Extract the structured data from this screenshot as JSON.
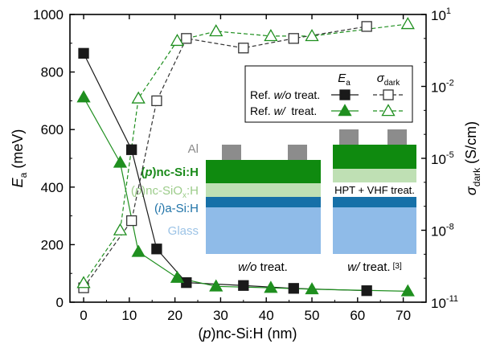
{
  "chart_data": {
    "type": "line",
    "x_axis": {
      "label_main": "(",
      "label_italic": "p",
      "label_rest": ")nc-Si:H (nm)",
      "range": [
        -3,
        75
      ],
      "ticks": [
        "0",
        "10",
        "20",
        "30",
        "40",
        "50",
        "60",
        "70"
      ],
      "tick_values": [
        0,
        10,
        20,
        30,
        40,
        50,
        60,
        70
      ]
    },
    "y_left": {
      "label_sym": "E",
      "label_sub": "a",
      "label_unit": " (meV)",
      "range": [
        0,
        1000
      ],
      "ticks": [
        "0",
        "200",
        "400",
        "600",
        "800",
        "1000"
      ],
      "tick_values": [
        0,
        200,
        400,
        600,
        800,
        1000
      ]
    },
    "y_right": {
      "label_sym": "σ",
      "label_sub": "dark",
      "label_unit": " (S/cm)",
      "scale": "log",
      "range_exp": [
        -11,
        1
      ],
      "ticks": [
        {
          "base": "10",
          "exp": "1",
          "e": 1
        },
        {
          "base": "10",
          "exp": "-2",
          "e": -2
        },
        {
          "base": "10",
          "exp": "-5",
          "e": -5
        },
        {
          "base": "10",
          "exp": "-8",
          "e": -8
        },
        {
          "base": "10",
          "exp": "-11",
          "e": -11
        }
      ]
    },
    "series": [
      {
        "axis": "left",
        "color": "#1a1a1a",
        "marker": "square-filled",
        "line": "solid",
        "x": [
          0,
          10.5,
          16,
          22.5,
          35,
          46,
          62
        ],
        "y": [
          865,
          530,
          185,
          68,
          58,
          48,
          40
        ]
      },
      {
        "axis": "left",
        "color": "#1f8f1f",
        "marker": "triangle-filled",
        "line": "solid",
        "x": [
          0,
          8,
          12,
          20.5,
          29,
          41,
          50,
          71
        ],
        "y": [
          712,
          485,
          175,
          85,
          55,
          50,
          45,
          38
        ]
      },
      {
        "axis": "right",
        "color": "#333333",
        "marker": "square-open",
        "line": "dashed",
        "x": [
          0,
          10.5,
          16,
          22.5,
          35,
          46,
          62
        ],
        "y_exp": [
          -10.4,
          -7.6,
          -2.6,
          0.0,
          -0.4,
          0.0,
          0.5
        ]
      },
      {
        "axis": "right",
        "color": "#1f8f1f",
        "marker": "triangle-open",
        "line": "dashed",
        "x": [
          0,
          8,
          12,
          20.5,
          29,
          41,
          50,
          71
        ],
        "y_exp": [
          -10.2,
          -8.0,
          -2.5,
          -0.1,
          0.3,
          0.1,
          0.1,
          0.6
        ]
      }
    ],
    "legend": {
      "header_left_sym": "E",
      "header_left_sub": "a",
      "header_right_sym": "σ",
      "header_right_sub": "dark",
      "rows": [
        {
          "prefix": "Ref. ",
          "italic": "w/o",
          "suffix": " treat."
        },
        {
          "prefix": "Ref. ",
          "italic": "w/",
          "suffix": "  treat."
        }
      ]
    },
    "inset": {
      "layers": [
        {
          "text": "Al",
          "color": "#8a8a8a"
        },
        {
          "text_pre": "(",
          "text_it": "p",
          "text_post": ")nc-Si:H",
          "color": "#1a8a1a"
        },
        {
          "text_pre": "(",
          "text_it": "p",
          "text_post": ")nc-SiO",
          "text_sub": "x",
          "text_tail": ":H",
          "color": "#9ccc8a"
        },
        {
          "text_pre": "(",
          "text_it": "i",
          "text_post": ")a-Si:H",
          "color": "#1f73a8"
        },
        {
          "text": "Glass",
          "color": "#9cc3e6"
        }
      ],
      "treatment_label": "HPT + VHF treat.",
      "caption_left_it": "w/o",
      "caption_left_rest": "  treat.",
      "caption_right_it": "w/",
      "caption_right_rest": "  treat.",
      "caption_right_ref": "[3]",
      "colors": {
        "al": "#8c8c8c",
        "nc": "#0f8a0f",
        "sio": "#bfe0b4",
        "asi": "#1670a8",
        "glass": "#8fbbe8"
      }
    }
  }
}
